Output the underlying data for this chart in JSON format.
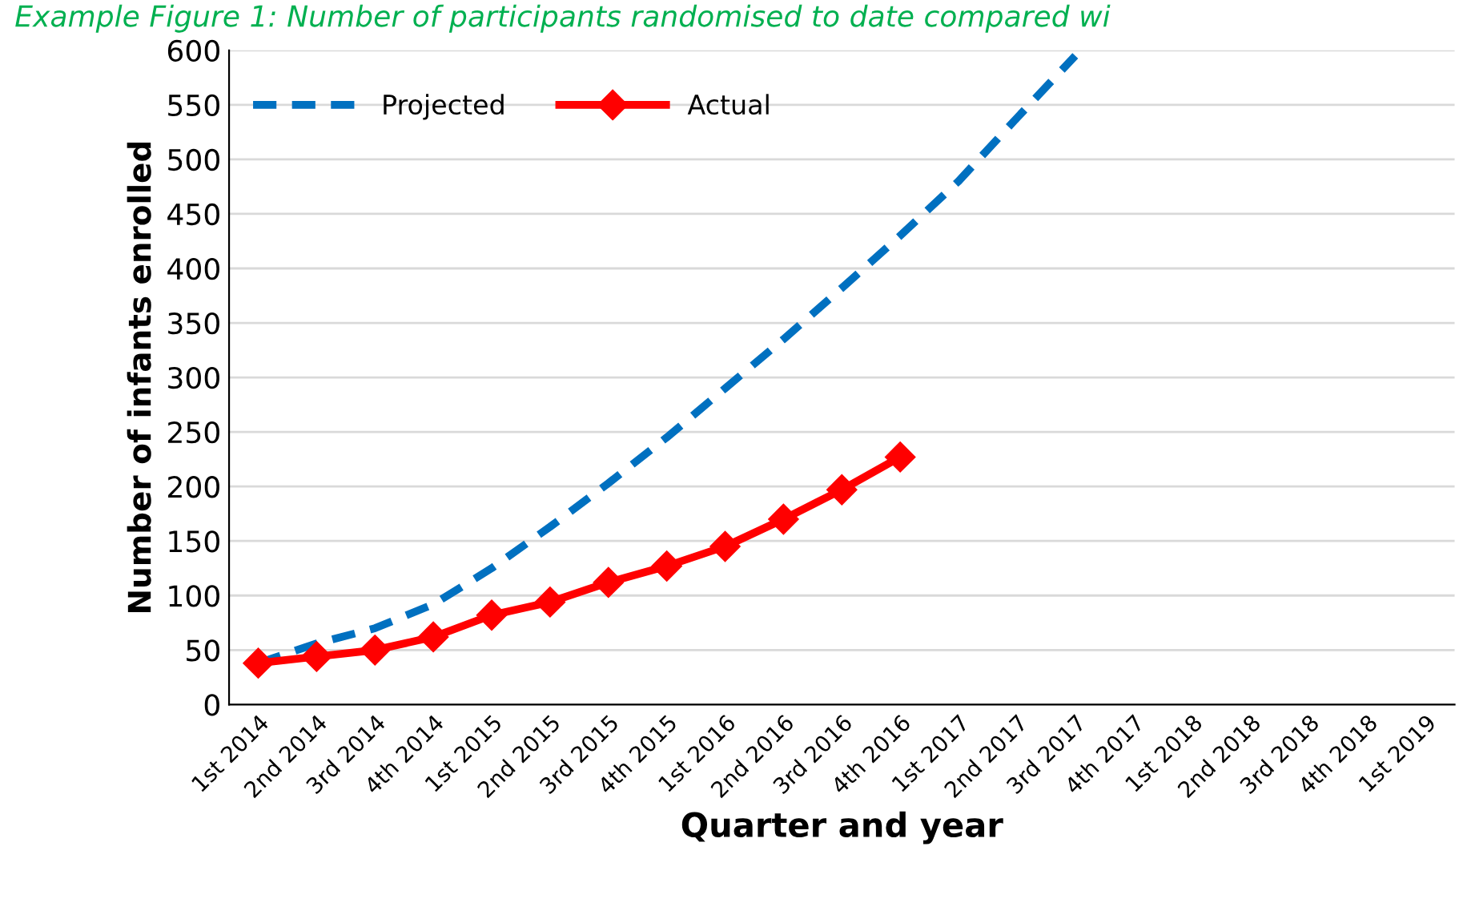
{
  "chart_data": {
    "type": "line",
    "title": "Example Figure 1: Number of participants randomised to date compared wi",
    "xlabel": "Quarter and year",
    "ylabel": "Number of infants enrolled",
    "categories": [
      "1st 2014",
      "2nd 2014",
      "3rd 2014",
      "4th 2014",
      "1st 2015",
      "2nd 2015",
      "3rd 2015",
      "4th 2015",
      "1st 2016",
      "2nd 2016",
      "3rd 2016",
      "4th 2016",
      "1st 2017",
      "2nd 2017",
      "3rd 2017",
      "4th 2017",
      "1st 2018",
      "2nd 2018",
      "3rd 2018",
      "4th 2018",
      "1st 2019"
    ],
    "series": [
      {
        "name": "Projected",
        "color": "#0070c0",
        "line_style": "dashed",
        "marker": "none",
        "values": [
          38,
          56,
          70,
          92,
          125,
          163,
          203,
          245,
          290,
          335,
          382,
          430,
          480,
          538,
          595,
          null,
          null,
          null,
          null,
          null,
          null
        ]
      },
      {
        "name": "Actual",
        "color": "#ff0000",
        "line_style": "solid",
        "marker": "diamond",
        "values": [
          38,
          44,
          50,
          62,
          82,
          94,
          112,
          127,
          145,
          170,
          197,
          227,
          null,
          null,
          null,
          null,
          null,
          null,
          null,
          null,
          null
        ]
      }
    ],
    "ylim": [
      0,
      600
    ],
    "yticks": [
      0,
      50,
      100,
      150,
      200,
      250,
      300,
      350,
      400,
      450,
      500,
      550,
      600
    ],
    "grid": "y",
    "legend": "top left"
  }
}
